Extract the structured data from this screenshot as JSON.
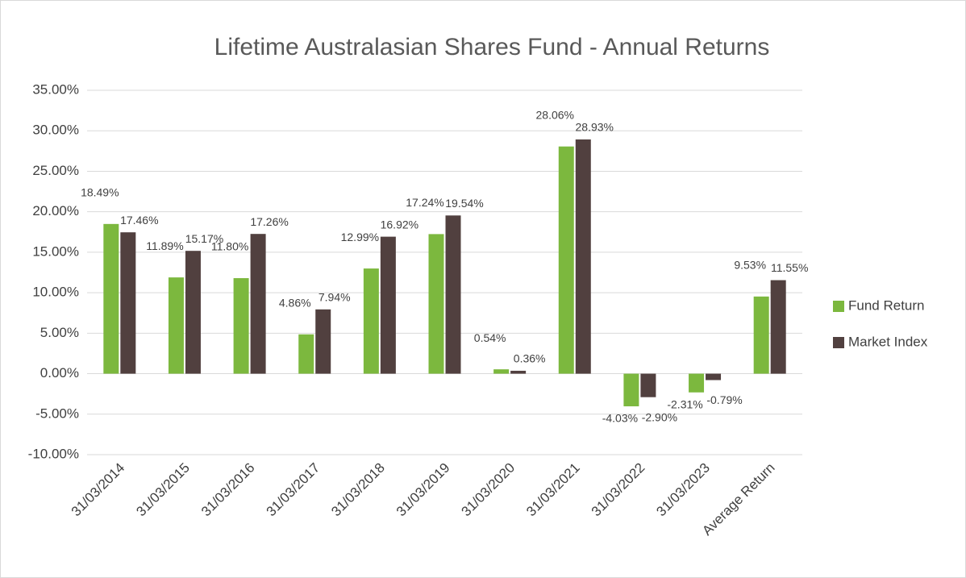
{
  "chart_data": {
    "type": "bar",
    "title": "Lifetime Australasian Shares Fund - Annual Returns",
    "categories": [
      "31/03/2014",
      "31/03/2015",
      "31/03/2016",
      "31/03/2017",
      "31/03/2018",
      "31/03/2019",
      "31/03/2020",
      "31/03/2021",
      "31/03/2022",
      "31/03/2023",
      "Average Return"
    ],
    "series": [
      {
        "name": "Fund Return",
        "color": "#7cb83e",
        "values": [
          18.49,
          11.89,
          11.8,
          4.86,
          12.99,
          17.24,
          0.54,
          28.06,
          -4.03,
          -2.31,
          9.53
        ],
        "value_labels": [
          "18.49%",
          "11.89%",
          "11.80%",
          "4.86%",
          "12.99%",
          "17.24%",
          "0.54%",
          "28.06%",
          "-4.03%",
          "-2.31%",
          "9.53%"
        ]
      },
      {
        "name": "Market Index",
        "color": "#51403f",
        "values": [
          17.46,
          15.17,
          17.26,
          7.94,
          16.92,
          19.54,
          0.36,
          28.93,
          -2.9,
          -0.79,
          11.55
        ],
        "value_labels": [
          "17.46%",
          "15.17%",
          "17.26%",
          "7.94%",
          "16.92%",
          "19.54%",
          "0.36%",
          "28.93%",
          "-2.90%",
          "-0.79%",
          "11.55%"
        ]
      }
    ],
    "ylim": [
      -10,
      35
    ],
    "yticks": [
      {
        "value": -10,
        "label": "-10.00%"
      },
      {
        "value": -5,
        "label": "-5.00%"
      },
      {
        "value": 0,
        "label": "0.00%"
      },
      {
        "value": 5,
        "label": "5.00%"
      },
      {
        "value": 10,
        "label": "10.00%"
      },
      {
        "value": 15,
        "label": "15.00%"
      },
      {
        "value": 20,
        "label": "20.00%"
      },
      {
        "value": 25,
        "label": "25.00%"
      },
      {
        "value": 30,
        "label": "30.00%"
      },
      {
        "value": 35,
        "label": "35.00%"
      }
    ],
    "grid": true,
    "legend": "right"
  }
}
